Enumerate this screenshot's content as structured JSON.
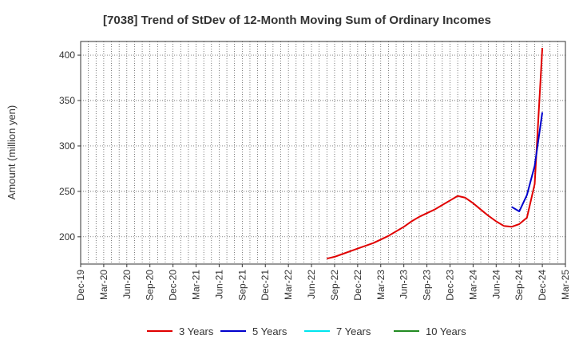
{
  "chart_data": {
    "type": "line",
    "title": "[7038]  Trend of StDev of 12-Month Moving Sum of Ordinary Incomes",
    "xlabel": "",
    "ylabel": "Amount (million yen)",
    "x_ticks": [
      "Dec-19",
      "Mar-20",
      "Jun-20",
      "Sep-20",
      "Dec-20",
      "Mar-21",
      "Jun-21",
      "Sep-21",
      "Dec-21",
      "Mar-22",
      "Jun-22",
      "Sep-22",
      "Dec-22",
      "Mar-23",
      "Jun-23",
      "Sep-23",
      "Dec-23",
      "Mar-24",
      "Jun-24",
      "Sep-24",
      "Dec-24",
      "Mar-25"
    ],
    "y_ticks": [
      200,
      250,
      300,
      350,
      400
    ],
    "ylim": [
      170,
      415
    ],
    "grid": true,
    "legend_position": "bottom",
    "series": [
      {
        "name": "3 Years",
        "color": "#e00000",
        "x": [
          "Aug-22",
          "Sep-22",
          "Oct-22",
          "Nov-22",
          "Dec-22",
          "Jan-23",
          "Feb-23",
          "Mar-23",
          "Apr-23",
          "May-23",
          "Jun-23",
          "Jul-23",
          "Aug-23",
          "Sep-23",
          "Oct-23",
          "Nov-23",
          "Dec-23",
          "Jan-24",
          "Feb-24",
          "Mar-24",
          "Apr-24",
          "May-24",
          "Jun-24",
          "Jul-24",
          "Aug-24",
          "Sep-24",
          "Oct-24",
          "Nov-24",
          "Dec-24"
        ],
        "values": [
          176,
          178,
          181,
          184,
          187,
          190,
          193,
          197,
          201,
          206,
          211,
          217,
          222,
          226,
          230,
          235,
          240,
          245,
          243,
          237,
          230,
          223,
          217,
          212,
          211,
          214,
          221,
          258,
          408
        ]
      },
      {
        "name": "5 Years",
        "color": "#0000cc",
        "x": [
          "Aug-24",
          "Sep-24",
          "Oct-24",
          "Nov-24",
          "Dec-24"
        ],
        "values": [
          233,
          228,
          246,
          278,
          337
        ]
      },
      {
        "name": "7 Years",
        "color": "#00e5ee",
        "x": [],
        "values": []
      },
      {
        "name": "10 Years",
        "color": "#228b22",
        "x": [],
        "values": []
      }
    ]
  }
}
